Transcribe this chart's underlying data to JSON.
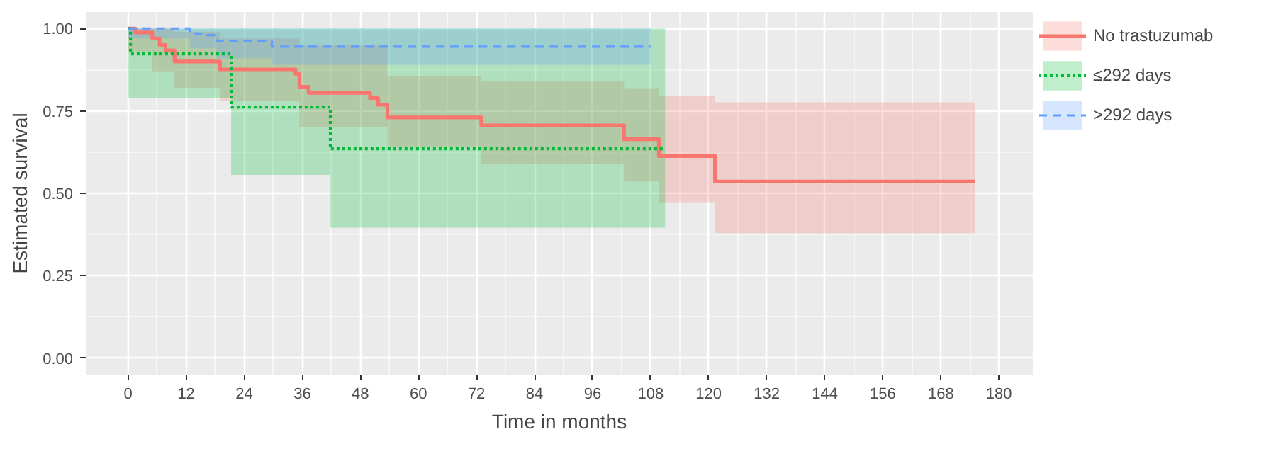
{
  "chart_data": {
    "type": "step",
    "xlabel": "Time in months",
    "ylabel": "Estimated survival",
    "xlim": [
      -8.75,
      187
    ],
    "ylim": [
      -0.05,
      1.05
    ],
    "xticks": [
      0,
      12,
      24,
      36,
      48,
      60,
      72,
      84,
      96,
      108,
      120,
      132,
      144,
      156,
      168,
      180
    ],
    "yticks": [
      {
        "value": 0,
        "label": "0.00"
      },
      {
        "value": 0.25,
        "label": "0.25"
      },
      {
        "value": 0.5,
        "label": "0.50"
      },
      {
        "value": 0.75,
        "label": "0.75"
      },
      {
        "value": 1,
        "label": "1.00"
      }
    ],
    "grid": true,
    "legend": "right",
    "series": [
      {
        "name": "No trastuzumab",
        "color": "#f8766d",
        "line_style": "solid",
        "x": [
          0,
          1.5,
          5,
          6.5,
          7.7,
          9.6,
          19,
          34.6,
          35.4,
          37.3,
          50,
          51.7,
          53.6,
          73,
          102.5,
          109.7,
          121.3,
          175
        ],
        "values": [
          1.0,
          0.988,
          0.97,
          0.95,
          0.934,
          0.9,
          0.876,
          0.863,
          0.823,
          0.805,
          0.789,
          0.769,
          0.73,
          0.706,
          0.664,
          0.613,
          0.536,
          0.536
        ],
        "lower": [
          0.93,
          0.93,
          0.87,
          0.87,
          0.87,
          0.82,
          0.78,
          0.78,
          0.7,
          0.7,
          0.7,
          0.7,
          0.64,
          0.59,
          0.536,
          0.473,
          0.379,
          0.379
        ],
        "upper": [
          1,
          1,
          1,
          1,
          1,
          0.99,
          0.97,
          0.97,
          0.95,
          0.95,
          0.95,
          0.95,
          0.856,
          0.839,
          0.819,
          0.796,
          0.776,
          0.776
        ]
      },
      {
        "name": "≤292 days",
        "color": "#00ba38",
        "line_style": "dotted",
        "x": [
          0,
          0.5,
          21.3,
          41.8,
          111
        ],
        "values": [
          1.0,
          0.923,
          0.762,
          0.635,
          0.635
        ],
        "lower": [
          0.79,
          0.79,
          0.556,
          0.396,
          0.396
        ],
        "upper": [
          1,
          1,
          1,
          1,
          1
        ]
      },
      {
        "name": ">292 days",
        "color": "#619cff",
        "line_style": "dashed",
        "x": [
          0,
          12.8,
          15.3,
          18.3,
          29.7,
          108
        ],
        "values": [
          1.0,
          0.985,
          0.98,
          0.963,
          0.945,
          0.945
        ],
        "lower": [
          0.97,
          0.94,
          0.94,
          0.91,
          0.89,
          0.89
        ],
        "upper": [
          1,
          1,
          1,
          1,
          1,
          1
        ]
      }
    ]
  }
}
